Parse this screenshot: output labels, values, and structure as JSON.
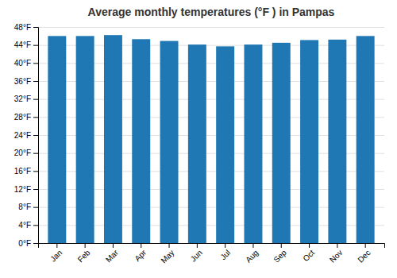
{
  "chart_data": {
    "type": "bar",
    "title": "Average monthly temperatures (°F ) in Pampas",
    "categories": [
      "Jan",
      "Feb",
      "Mar",
      "Apr",
      "May",
      "Jun",
      "Jul",
      "Aug",
      "Sep",
      "Oct",
      "Nov",
      "Dec"
    ],
    "values": [
      46.0,
      46.0,
      46.2,
      45.3,
      44.9,
      44.1,
      43.7,
      44.1,
      44.5,
      45.1,
      45.2,
      46.0
    ],
    "ylim": [
      0,
      48
    ],
    "yticks": [
      {
        "value": 0,
        "label": "0°F"
      },
      {
        "value": 4,
        "label": "4°F"
      },
      {
        "value": 8,
        "label": "8°F"
      },
      {
        "value": 12,
        "label": "12°F"
      },
      {
        "value": 16,
        "label": "16°F"
      },
      {
        "value": 20,
        "label": "20°F"
      },
      {
        "value": 24,
        "label": "24°F"
      },
      {
        "value": 28,
        "label": "28°F"
      },
      {
        "value": 32,
        "label": "32°F"
      },
      {
        "value": 36,
        "label": "36°F"
      },
      {
        "value": 40,
        "label": "40°F"
      },
      {
        "value": 44,
        "label": "44°F"
      },
      {
        "value": 48,
        "label": "48°F"
      }
    ],
    "grid": true
  }
}
